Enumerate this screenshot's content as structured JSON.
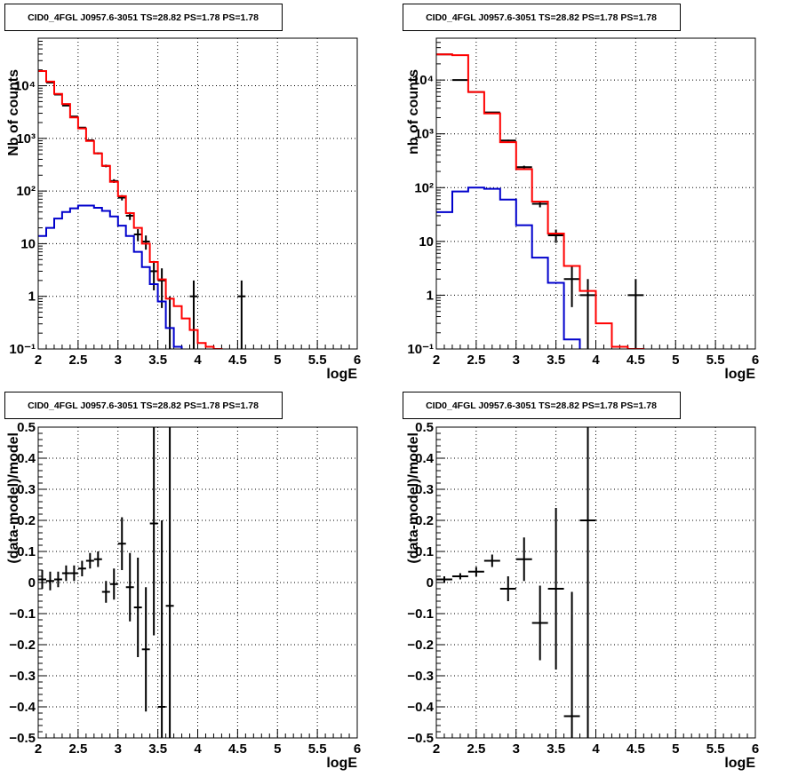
{
  "colors": {
    "data": "#000000",
    "total_model": "#ff0000",
    "source_model": "#0000cc",
    "grid": "#000000",
    "frame": "#000000"
  },
  "chart_data": [
    {
      "type": "line",
      "title": "CID0_4FGL J0957.6-3051 TS=28.82 PS=1.78 PS=1.78",
      "xlabel": "logE",
      "ylabel": "Nb of counts",
      "xlim": [
        2,
        6
      ],
      "ylim": [
        0.1,
        80000
      ],
      "yscale": "log",
      "grid": true,
      "x_ticks": [
        "2",
        "2.5",
        "3",
        "3.5",
        "4",
        "4.5",
        "5",
        "5.5",
        "6"
      ],
      "y_ticks": [
        {
          "value": 0.1,
          "label": "10⁻¹"
        },
        {
          "value": 1,
          "label": "1"
        },
        {
          "value": 10,
          "label": "10"
        },
        {
          "value": 100,
          "label": "10²"
        },
        {
          "value": 1000,
          "label": "10³"
        },
        {
          "value": 10000,
          "label": "10⁴"
        }
      ],
      "bin_edges": [
        2.0,
        2.1,
        2.2,
        2.3,
        2.4,
        2.5,
        2.6,
        2.7,
        2.8,
        2.9,
        3.0,
        3.1,
        3.2,
        3.3,
        3.4,
        3.5,
        3.6,
        3.7,
        3.8,
        3.9,
        4.0,
        4.1,
        4.2,
        4.3,
        4.4,
        4.5,
        4.6,
        4.7,
        4.8,
        4.9,
        5.0,
        5.1,
        5.2,
        5.3,
        5.4,
        5.5,
        5.6,
        5.7,
        5.8,
        5.9,
        6.0
      ],
      "series": [
        {
          "name": "",
          "kind": "points",
          "color_key": "data",
          "x": [
            2.05,
            2.15,
            2.25,
            2.35,
            2.45,
            2.55,
            2.65,
            2.75,
            2.85,
            2.95,
            3.05,
            3.15,
            3.25,
            3.35,
            3.45,
            3.55,
            3.65,
            3.95,
            4.55
          ],
          "y": [
            19000,
            11500,
            6800,
            4200,
            2600,
            1600,
            920,
            520,
            300,
            155,
            75,
            34,
            15,
            11,
            3,
            2,
            0,
            1,
            1
          ],
          "yerr": [
            140,
            107,
            82,
            65,
            51,
            40,
            30,
            23,
            17,
            12.5,
            8.7,
            5.8,
            3.9,
            3.3,
            1.7,
            1.4,
            0,
            1,
            1
          ]
        },
        {
          "name": "",
          "kind": "step",
          "color_key": "total_model",
          "values": [
            19000,
            12000,
            7000,
            4500,
            2500,
            1550,
            890,
            520,
            300,
            150,
            80,
            38,
            20,
            10,
            4.5,
            2.1,
            0.9,
            0.65,
            0.38,
            0.23,
            0.13,
            0.11,
            0.1,
            0.09,
            0.09,
            0.09,
            0.09,
            0.09,
            0.09,
            0.09,
            0.09,
            0.09,
            0.09,
            0.09,
            0.09,
            0.09,
            0.09,
            0.09,
            0.09,
            0.09
          ]
        },
        {
          "name": "",
          "kind": "step",
          "color_key": "source_model",
          "values": [
            14,
            20,
            30,
            40,
            47,
            53,
            53,
            48,
            42,
            33,
            22,
            14,
            7,
            3.6,
            1.7,
            0.8,
            0.25,
            0.11,
            0.09,
            0.09,
            0.09,
            0.09,
            0.09,
            0.09,
            0.09,
            0.09,
            0.09,
            0.09,
            0.09,
            0.09,
            0.09,
            0.09,
            0.09,
            0.09,
            0.09,
            0.09,
            0.09,
            0.09,
            0.09,
            0.09
          ]
        }
      ]
    },
    {
      "type": "line",
      "title": "CID0_4FGL J0957.6-3051 TS=28.82 PS=1.78 PS=1.78",
      "xlabel": "logE",
      "ylabel": "nb of counts",
      "xlim": [
        2,
        6
      ],
      "ylim": [
        0.1,
        60000
      ],
      "yscale": "log",
      "grid": true,
      "x_ticks": [
        "2",
        "2.5",
        "3",
        "3.5",
        "4",
        "4.5",
        "5",
        "5.5",
        "6"
      ],
      "y_ticks": [
        {
          "value": 0.1,
          "label": "10⁻¹"
        },
        {
          "value": 1,
          "label": "1"
        },
        {
          "value": 10,
          "label": "10"
        },
        {
          "value": 100,
          "label": "10²"
        },
        {
          "value": 1000,
          "label": "10³"
        },
        {
          "value": 10000,
          "label": "10⁴"
        }
      ],
      "bin_edges": [
        2.0,
        2.2,
        2.4,
        2.6,
        2.8,
        3.0,
        3.2,
        3.4,
        3.6,
        3.8,
        4.0,
        4.2,
        4.4,
        4.6,
        4.8,
        5.0,
        5.2,
        5.4,
        5.6,
        5.8,
        6.0
      ],
      "series": [
        {
          "name": "",
          "kind": "points",
          "color_key": "data",
          "x": [
            2.1,
            2.3,
            2.5,
            2.7,
            2.9,
            3.1,
            3.3,
            3.5,
            3.7,
            3.9,
            4.5
          ],
          "y": [
            30000,
            10000,
            6000,
            2500,
            750,
            240,
            50,
            13,
            2,
            1,
            1
          ],
          "yerr": [
            173,
            100,
            77,
            50,
            27,
            15.5,
            7,
            3.6,
            1.4,
            1,
            1
          ]
        },
        {
          "name": "",
          "kind": "step",
          "color_key": "total_model",
          "values": [
            30000,
            29000,
            6000,
            2400,
            700,
            220,
            55,
            14,
            3.5,
            1.2,
            0.3,
            0.11,
            0.1,
            0.09,
            0.09,
            0.09,
            0.09,
            0.09,
            0.09,
            0.09
          ]
        },
        {
          "name": "",
          "kind": "step",
          "color_key": "source_model",
          "values": [
            35,
            85,
            100,
            95,
            60,
            20,
            5,
            1.7,
            0.15,
            0.09,
            0.09,
            0.09,
            0.09,
            0.09,
            0.09,
            0.09,
            0.09,
            0.09,
            0.09,
            0.09
          ]
        }
      ]
    },
    {
      "type": "scatter",
      "title": "CID0_4FGL J0957.6-3051 TS=28.82 PS=1.78 PS=1.78",
      "xlabel": "logE",
      "ylabel": "(data-model)/model",
      "xlim": [
        2,
        6
      ],
      "ylim": [
        -0.5,
        0.5
      ],
      "yscale": "linear",
      "grid": true,
      "x_ticks": [
        "2",
        "2.5",
        "3",
        "3.5",
        "4",
        "4.5",
        "5",
        "5.5",
        "6"
      ],
      "y_ticks": [
        {
          "value": -0.5,
          "label": "−0.5"
        },
        {
          "value": -0.4,
          "label": "−0.4"
        },
        {
          "value": -0.3,
          "label": "−0.3"
        },
        {
          "value": -0.2,
          "label": "−0.2"
        },
        {
          "value": -0.1,
          "label": "−0.1"
        },
        {
          "value": 0,
          "label": "0"
        },
        {
          "value": 0.1,
          "label": "0.1"
        },
        {
          "value": 0.2,
          "label": "0.2"
        },
        {
          "value": 0.3,
          "label": "0.3"
        },
        {
          "value": 0.4,
          "label": "0.4"
        },
        {
          "value": 0.5,
          "label": "0.5"
        }
      ],
      "series": [
        {
          "name": "",
          "kind": "points",
          "color_key": "data",
          "xerr": 0.05,
          "x": [
            2.05,
            2.15,
            2.25,
            2.35,
            2.45,
            2.55,
            2.65,
            2.75,
            2.85,
            2.95,
            3.05,
            3.15,
            3.25,
            3.35,
            3.45,
            3.55,
            3.65
          ],
          "y": [
            0.01,
            0.005,
            0.01,
            0.03,
            0.03,
            0.045,
            0.07,
            0.075,
            -0.03,
            -0.005,
            0.125,
            -0.015,
            -0.08,
            -0.215,
            0.19,
            -0.4,
            -0.075
          ],
          "yerr": [
            0.03,
            0.03,
            0.025,
            0.025,
            0.025,
            0.025,
            0.025,
            0.025,
            0.035,
            0.05,
            0.085,
            0.11,
            0.16,
            0.2,
            0.36,
            0.6,
            0.6
          ]
        }
      ]
    },
    {
      "type": "scatter",
      "title": "CID0_4FGL J0957.6-3051 TS=28.82 PS=1.78 PS=1.78",
      "xlabel": "logE",
      "ylabel": "(data-model)/model",
      "xlim": [
        2,
        6
      ],
      "ylim": [
        -0.5,
        0.5
      ],
      "yscale": "linear",
      "grid": true,
      "x_ticks": [
        "2",
        "2.5",
        "3",
        "3.5",
        "4",
        "4.5",
        "5",
        "5.5",
        "6"
      ],
      "y_ticks": [
        {
          "value": -0.5,
          "label": "−0.5"
        },
        {
          "value": -0.4,
          "label": "−0.4"
        },
        {
          "value": -0.3,
          "label": "−0.3"
        },
        {
          "value": -0.2,
          "label": "−0.2"
        },
        {
          "value": -0.1,
          "label": "−0.1"
        },
        {
          "value": 0,
          "label": "0"
        },
        {
          "value": 0.1,
          "label": "0.1"
        },
        {
          "value": 0.2,
          "label": "0.2"
        },
        {
          "value": 0.3,
          "label": "0.3"
        },
        {
          "value": 0.4,
          "label": "0.4"
        },
        {
          "value": 0.5,
          "label": "0.5"
        }
      ],
      "series": [
        {
          "name": "",
          "kind": "points",
          "color_key": "data",
          "xerr": 0.1,
          "x": [
            2.1,
            2.3,
            2.5,
            2.7,
            2.9,
            3.1,
            3.3,
            3.5,
            3.7,
            3.9
          ],
          "y": [
            0.01,
            0.02,
            0.035,
            0.07,
            -0.02,
            0.075,
            -0.13,
            -0.02,
            -0.43,
            0.2
          ],
          "yerr": [
            0.01,
            0.01,
            0.015,
            0.02,
            0.04,
            0.07,
            0.12,
            0.26,
            0.4,
            0.7
          ]
        }
      ]
    }
  ]
}
